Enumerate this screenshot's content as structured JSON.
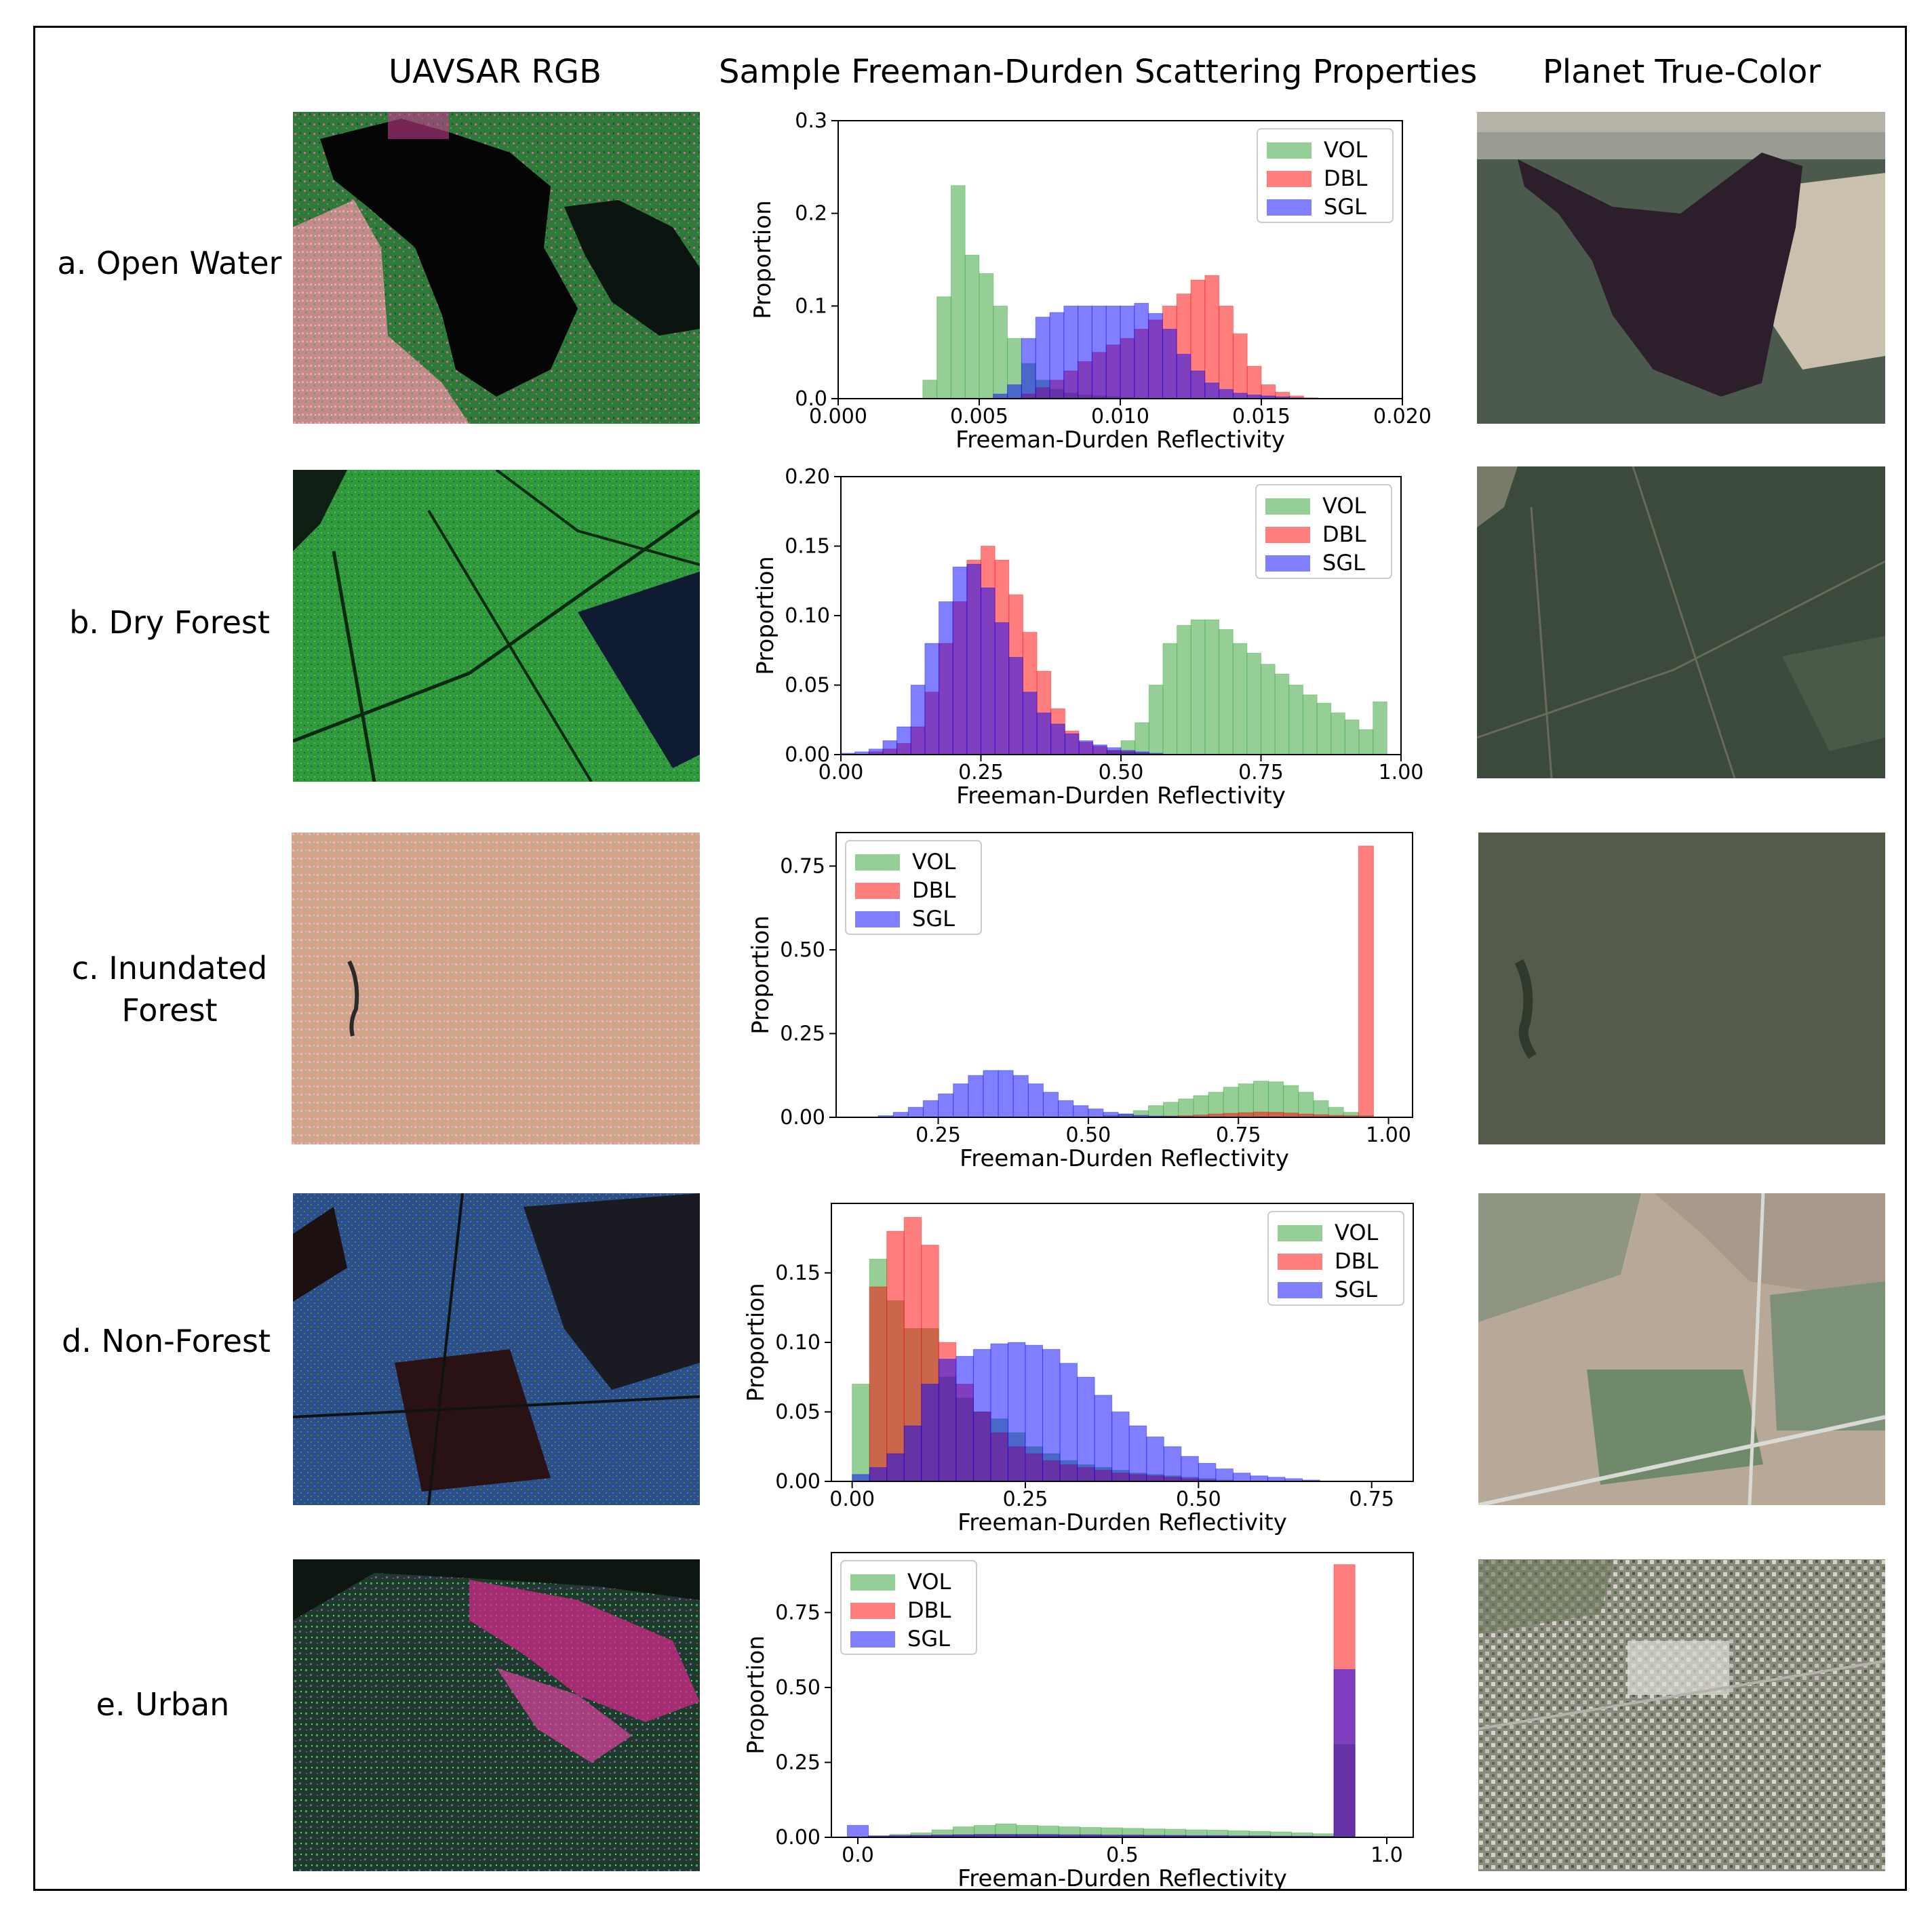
{
  "header": {
    "col1": "UAVSAR RGB",
    "col2": "Sample Freeman-Durden Scattering Properties",
    "col3": "Planet True-Color"
  },
  "rows": [
    {
      "label_line1": "a. Open Water",
      "label_line2": ""
    },
    {
      "label_line1": "b. Dry Forest",
      "label_line2": ""
    },
    {
      "label_line1": "c. Inundated",
      "label_line2": "Forest"
    },
    {
      "label_line1": "d. Non-Forest",
      "label_line2": ""
    },
    {
      "label_line1": "e. Urban",
      "label_line2": ""
    }
  ],
  "colors": {
    "VOL": "#2ca02c",
    "DBL": "#ff0000",
    "SGL": "#0000ff"
  },
  "chart_data": [
    {
      "type": "bar",
      "subtype": "overlapping-histogram",
      "xlabel": "Freeman-Durden Reflectivity",
      "ylabel": "Proportion",
      "xlim": [
        0.0,
        0.02
      ],
      "ylim": [
        0.0,
        0.3
      ],
      "xticks": [
        0.0,
        0.005,
        0.01,
        0.015,
        0.02
      ],
      "xtick_labels": [
        "0.000",
        "0.005",
        "0.010",
        "0.015",
        "0.020"
      ],
      "yticks": [
        0.0,
        0.1,
        0.2,
        0.3
      ],
      "ytick_labels": [
        "0.0",
        "0.1",
        "0.2",
        "0.3"
      ],
      "legend_position": "upper right",
      "bin_width": 0.0005,
      "series": [
        {
          "name": "VOL",
          "x_start": 0.003,
          "values": [
            0.02,
            0.11,
            0.23,
            0.155,
            0.135,
            0.1,
            0.065,
            0.038,
            0.02,
            0.01,
            0.006,
            0.004,
            0.003,
            0.002,
            0.001
          ]
        },
        {
          "name": "DBL",
          "x_start": 0.0065,
          "values": [
            0.005,
            0.012,
            0.02,
            0.03,
            0.04,
            0.05,
            0.058,
            0.065,
            0.075,
            0.085,
            0.1,
            0.113,
            0.128,
            0.133,
            0.1,
            0.07,
            0.035,
            0.015,
            0.007,
            0.003,
            0.001
          ]
        },
        {
          "name": "SGL",
          "x_start": 0.0055,
          "values": [
            0.005,
            0.015,
            0.065,
            0.088,
            0.093,
            0.1,
            0.1,
            0.1,
            0.1,
            0.1,
            0.103,
            0.092,
            0.075,
            0.048,
            0.03,
            0.017,
            0.01,
            0.006,
            0.004,
            0.003,
            0.002,
            0.001
          ]
        }
      ]
    },
    {
      "type": "bar",
      "subtype": "overlapping-histogram",
      "xlabel": "Freeman-Durden Reflectivity",
      "ylabel": "Proportion",
      "xlim": [
        0.0,
        1.0
      ],
      "ylim": [
        0.0,
        0.2
      ],
      "xticks": [
        0.0,
        0.25,
        0.5,
        0.75,
        1.0
      ],
      "xtick_labels": [
        "0.00",
        "0.25",
        "0.50",
        "0.75",
        "1.00"
      ],
      "yticks": [
        0.0,
        0.05,
        0.1,
        0.15,
        0.2
      ],
      "ytick_labels": [
        "0.00",
        "0.05",
        "0.10",
        "0.15",
        "0.20"
      ],
      "legend_position": "upper right",
      "bin_width": 0.025,
      "series": [
        {
          "name": "VOL",
          "x_start": 0.475,
          "values": [
            0.003,
            0.01,
            0.023,
            0.05,
            0.08,
            0.093,
            0.097,
            0.097,
            0.09,
            0.08,
            0.073,
            0.065,
            0.058,
            0.05,
            0.043,
            0.037,
            0.03,
            0.025,
            0.018,
            0.038
          ]
        },
        {
          "name": "DBL",
          "x_start": 0.05,
          "values": [
            0.002,
            0.004,
            0.008,
            0.02,
            0.045,
            0.08,
            0.11,
            0.14,
            0.15,
            0.14,
            0.115,
            0.088,
            0.06,
            0.033,
            0.017,
            0.009,
            0.006,
            0.003,
            0.002,
            0.001
          ]
        },
        {
          "name": "SGL",
          "x_start": 0.0,
          "values": [
            0.001,
            0.002,
            0.004,
            0.01,
            0.02,
            0.05,
            0.08,
            0.11,
            0.135,
            0.137,
            0.12,
            0.095,
            0.07,
            0.045,
            0.03,
            0.022,
            0.015,
            0.01,
            0.007,
            0.005,
            0.003,
            0.002,
            0.001
          ]
        }
      ]
    },
    {
      "type": "bar",
      "subtype": "overlapping-histogram",
      "xlabel": "Freeman-Durden Reflectivity",
      "ylabel": "Proportion",
      "xlim": [
        0.08,
        1.04
      ],
      "ylim": [
        0.0,
        0.85
      ],
      "xticks": [
        0.25,
        0.5,
        0.75,
        1.0
      ],
      "xtick_labels": [
        "0.25",
        "0.50",
        "0.75",
        "1.00"
      ],
      "yticks": [
        0.0,
        0.25,
        0.5,
        0.75
      ],
      "ytick_labels": [
        "0.00",
        "0.25",
        "0.50",
        "0.75"
      ],
      "legend_position": "upper left",
      "bin_width": 0.025,
      "series": [
        {
          "name": "VOL",
          "x_start": 0.525,
          "values": [
            0.005,
            0.01,
            0.02,
            0.035,
            0.045,
            0.055,
            0.065,
            0.075,
            0.09,
            0.1,
            0.108,
            0.106,
            0.095,
            0.075,
            0.05,
            0.03,
            0.015,
            0.005
          ]
        },
        {
          "name": "DBL",
          "x_start": 0.6,
          "values": [
            0.002,
            0.004,
            0.005,
            0.007,
            0.01,
            0.012,
            0.014,
            0.016,
            0.015,
            0.013,
            0.01,
            0.008,
            0.006,
            0.005,
            0.81
          ]
        },
        {
          "name": "SGL",
          "x_start": 0.15,
          "values": [
            0.005,
            0.015,
            0.03,
            0.05,
            0.07,
            0.1,
            0.125,
            0.14,
            0.14,
            0.125,
            0.1,
            0.075,
            0.05,
            0.035,
            0.025,
            0.015,
            0.01,
            0.006,
            0.004,
            0.003,
            0.002,
            0.001
          ]
        }
      ]
    },
    {
      "type": "bar",
      "subtype": "overlapping-histogram",
      "xlabel": "Freeman-Durden Reflectivity",
      "ylabel": "Proportion",
      "xlim": [
        -0.03,
        0.81
      ],
      "ylim": [
        0.0,
        0.2
      ],
      "xticks": [
        0.0,
        0.25,
        0.5,
        0.75
      ],
      "xtick_labels": [
        "0.00",
        "0.25",
        "0.50",
        "0.75"
      ],
      "yticks": [
        0.0,
        0.05,
        0.1,
        0.15
      ],
      "ytick_labels": [
        "0.00",
        "0.05",
        "0.10",
        "0.15"
      ],
      "legend_position": "upper right",
      "bin_width": 0.025,
      "series": [
        {
          "name": "VOL",
          "x_start": 0.0,
          "values": [
            0.07,
            0.16,
            0.13,
            0.11,
            0.11,
            0.075,
            0.06,
            0.05,
            0.045,
            0.035,
            0.025,
            0.02,
            0.015,
            0.012,
            0.01,
            0.008,
            0.006,
            0.005,
            0.004,
            0.003,
            0.002,
            0.001
          ]
        },
        {
          "name": "DBL",
          "x_start": 0.0,
          "values": [
            0.0,
            0.14,
            0.18,
            0.19,
            0.17,
            0.1,
            0.07,
            0.05,
            0.035,
            0.025,
            0.02,
            0.015,
            0.012,
            0.01,
            0.008,
            0.006,
            0.005,
            0.004,
            0.003,
            0.002,
            0.001
          ]
        },
        {
          "name": "SGL",
          "x_start": 0.0,
          "values": [
            0.005,
            0.01,
            0.02,
            0.04,
            0.07,
            0.088,
            0.09,
            0.095,
            0.099,
            0.1,
            0.098,
            0.095,
            0.085,
            0.075,
            0.062,
            0.05,
            0.04,
            0.032,
            0.025,
            0.018,
            0.013,
            0.009,
            0.006,
            0.004,
            0.003,
            0.002,
            0.001
          ]
        }
      ]
    },
    {
      "type": "bar",
      "subtype": "overlapping-histogram",
      "xlabel": "Freeman-Durden Reflectivity",
      "ylabel": "Proportion",
      "xlim": [
        -0.05,
        1.05
      ],
      "ylim": [
        0.0,
        0.95
      ],
      "xticks": [
        0.0,
        0.5,
        1.0
      ],
      "xtick_labels": [
        "0.0",
        "0.5",
        "1.0"
      ],
      "yticks": [
        0.0,
        0.25,
        0.5,
        0.75
      ],
      "ytick_labels": [
        "0.00",
        "0.25",
        "0.50",
        "0.75"
      ],
      "legend_position": "upper left",
      "bin_width": 0.04,
      "series": [
        {
          "name": "VOL",
          "x_start": -0.02,
          "values": [
            0.0,
            0.005,
            0.01,
            0.015,
            0.025,
            0.035,
            0.04,
            0.045,
            0.04,
            0.038,
            0.035,
            0.033,
            0.032,
            0.03,
            0.028,
            0.027,
            0.025,
            0.024,
            0.022,
            0.02,
            0.018,
            0.015,
            0.012,
            0.31
          ]
        },
        {
          "name": "DBL",
          "x_start": -0.02,
          "values": [
            0.0,
            0.003,
            0.005,
            0.006,
            0.007,
            0.008,
            0.008,
            0.008,
            0.008,
            0.007,
            0.007,
            0.007,
            0.006,
            0.006,
            0.006,
            0.005,
            0.005,
            0.005,
            0.004,
            0.004,
            0.004,
            0.003,
            0.003,
            0.91
          ]
        },
        {
          "name": "SGL",
          "x_start": -0.02,
          "values": [
            0.04,
            0.005,
            0.006,
            0.007,
            0.008,
            0.009,
            0.01,
            0.01,
            0.01,
            0.01,
            0.009,
            0.009,
            0.008,
            0.008,
            0.007,
            0.007,
            0.006,
            0.006,
            0.005,
            0.005,
            0.004,
            0.004,
            0.003,
            0.56
          ]
        }
      ]
    }
  ]
}
